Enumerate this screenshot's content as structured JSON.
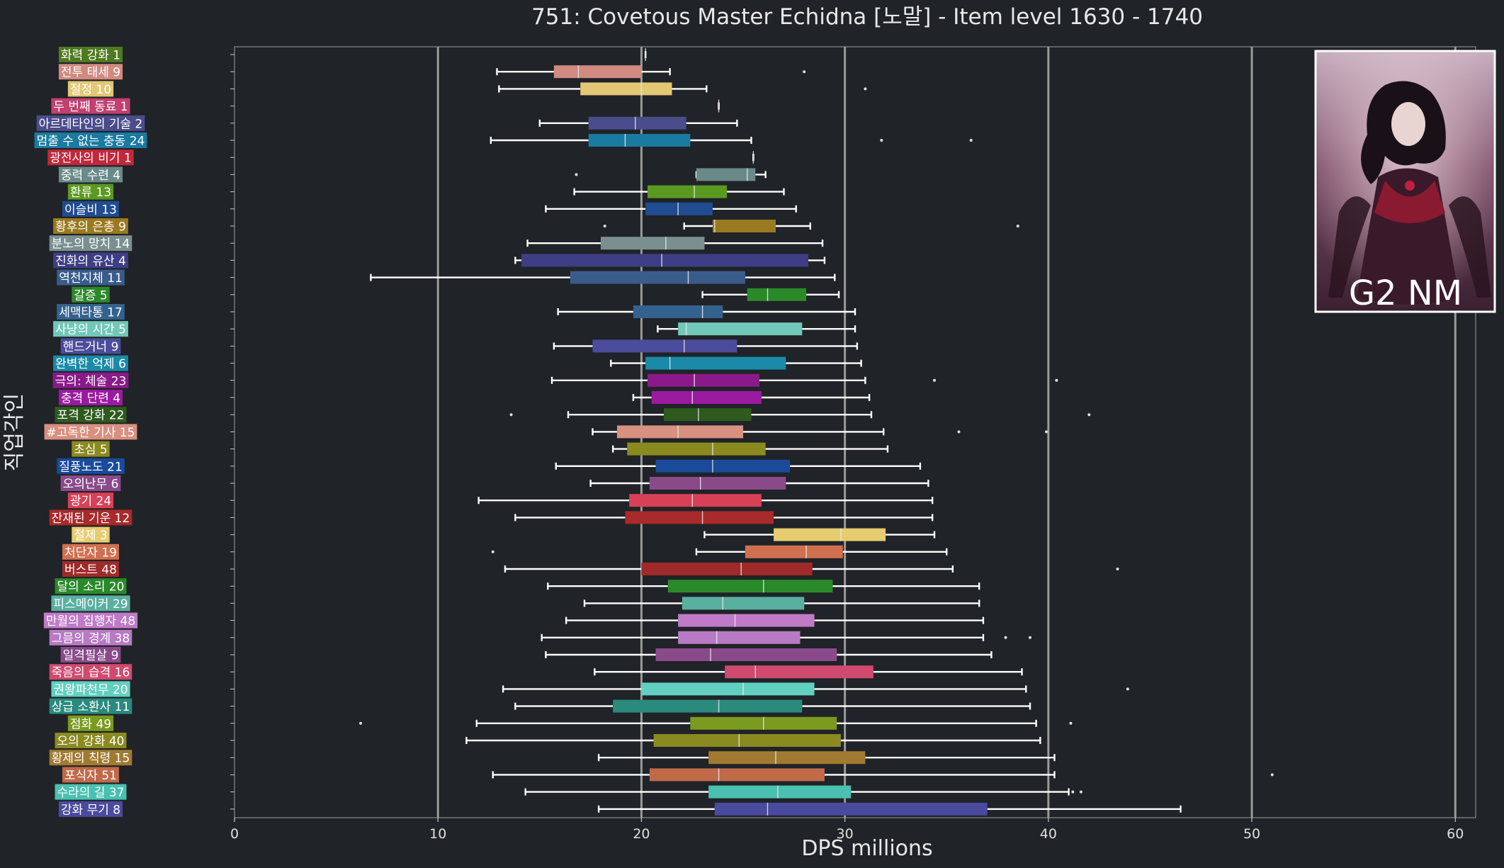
{
  "chart_data": {
    "type": "box",
    "title": "751: Covetous Master Echidna [노말] - Item level 1630 - 1740",
    "xlabel": "DPS millions",
    "ylabel": "직업각인",
    "xlim": [
      0,
      61
    ],
    "xticks": [
      0,
      10,
      20,
      30,
      40,
      50,
      60
    ],
    "grid": "vertical lines at 10,20,30,40,50,60",
    "inset_image_label": "G2 NM",
    "series": [
      {
        "label": "화력 강화 1",
        "color": "#4e7a20",
        "min": 20.2,
        "q1": 20.2,
        "median": 20.2,
        "q3": 20.2,
        "max": 20.2,
        "outliers": []
      },
      {
        "label": "전투 태세 9",
        "color": "#d08a80",
        "min": 12.9,
        "q1": 15.7,
        "median": 16.9,
        "q3": 20.0,
        "max": 21.4,
        "outliers": [
          28.0
        ]
      },
      {
        "label": "절정 10",
        "color": "#e2c874",
        "min": 13.0,
        "q1": 17.0,
        "median": 20.0,
        "q3": 21.5,
        "max": 23.2,
        "outliers": [
          31.0
        ]
      },
      {
        "label": "두 번째 동료 1",
        "color": "#c04070",
        "min": 23.8,
        "q1": 23.8,
        "median": 23.8,
        "q3": 23.8,
        "max": 23.8,
        "outliers": []
      },
      {
        "label": "아르데타인의 기술 2",
        "color": "#4a4c8c",
        "min": 15.0,
        "q1": 17.4,
        "median": 19.7,
        "q3": 22.2,
        "max": 24.7,
        "outliers": []
      },
      {
        "label": "멈출 수 없는 충동 24",
        "color": "#1a7aa0",
        "min": 12.6,
        "q1": 17.4,
        "median": 19.2,
        "q3": 22.4,
        "max": 25.4,
        "outliers": [
          31.8,
          36.2
        ]
      },
      {
        "label": "광전사의 비기 1",
        "color": "#c0283c",
        "min": 25.5,
        "q1": 25.5,
        "median": 25.5,
        "q3": 25.5,
        "max": 25.5,
        "outliers": []
      },
      {
        "label": "중력 수련 4",
        "color": "#6a8a8a",
        "min": 22.7,
        "q1": 22.7,
        "median": 25.2,
        "q3": 25.6,
        "max": 26.1,
        "outliers": [
          16.8
        ]
      },
      {
        "label": "환류 13",
        "color": "#5a9a20",
        "min": 16.7,
        "q1": 20.3,
        "median": 22.6,
        "q3": 24.2,
        "max": 27.0,
        "outliers": []
      },
      {
        "label": "이슬비 13",
        "color": "#204c90",
        "min": 15.3,
        "q1": 20.2,
        "median": 21.8,
        "q3": 23.5,
        "max": 27.6,
        "outliers": []
      },
      {
        "label": "황후의 은총 9",
        "color": "#9a7a20",
        "min": 22.1,
        "q1": 23.5,
        "median": 23.6,
        "q3": 26.6,
        "max": 28.3,
        "outliers": [
          18.2,
          38.5
        ]
      },
      {
        "label": "분노의 망치 14",
        "color": "#7a9090",
        "min": 14.4,
        "q1": 18.0,
        "median": 21.2,
        "q3": 23.1,
        "max": 28.9,
        "outliers": []
      },
      {
        "label": "진화의 유산 4",
        "color": "#3e3e86",
        "min": 13.8,
        "q1": 14.1,
        "median": 21.0,
        "q3": 28.2,
        "max": 29.0,
        "outliers": []
      },
      {
        "label": "역천지체 11",
        "color": "#3a5c8c",
        "min": 6.7,
        "q1": 16.5,
        "median": 22.3,
        "q3": 25.1,
        "max": 29.5,
        "outliers": []
      },
      {
        "label": "갈증 5",
        "color": "#2a8a2a",
        "min": 23.0,
        "q1": 25.2,
        "median": 26.2,
        "q3": 28.1,
        "max": 29.7,
        "outliers": []
      },
      {
        "label": "세맥타통 17",
        "color": "#34628e",
        "min": 15.9,
        "q1": 19.6,
        "median": 23.0,
        "q3": 24.0,
        "max": 30.5,
        "outliers": []
      },
      {
        "label": "사냥의 시간 5",
        "color": "#72c8b8",
        "min": 20.8,
        "q1": 21.8,
        "median": 22.2,
        "q3": 27.9,
        "max": 30.5,
        "outliers": []
      },
      {
        "label": "핸드거너 9",
        "color": "#4c4c9c",
        "min": 15.7,
        "q1": 17.6,
        "median": 22.1,
        "q3": 24.7,
        "max": 30.6,
        "outliers": []
      },
      {
        "label": "완벽한 억제 6",
        "color": "#1a8aa8",
        "min": 18.5,
        "q1": 20.2,
        "median": 21.4,
        "q3": 27.1,
        "max": 30.8,
        "outliers": []
      },
      {
        "label": "극의: 체술 23",
        "color": "#8a1a8a",
        "min": 15.6,
        "q1": 20.3,
        "median": 22.6,
        "q3": 25.8,
        "max": 31.0,
        "outliers": [
          34.4,
          40.4
        ]
      },
      {
        "label": "충격 단련 4",
        "color": "#9a1aa0",
        "min": 19.6,
        "q1": 20.5,
        "median": 22.5,
        "q3": 25.9,
        "max": 31.2,
        "outliers": []
      },
      {
        "label": "포격 강화 22",
        "color": "#2e5a1e",
        "min": 16.4,
        "q1": 21.1,
        "median": 22.8,
        "q3": 25.4,
        "max": 31.3,
        "outliers": [
          13.6,
          42.0
        ]
      },
      {
        "label": "#고독한 기사 15",
        "color": "#d89080",
        "min": 17.6,
        "q1": 18.8,
        "median": 21.8,
        "q3": 25.0,
        "max": 31.9,
        "outliers": [
          35.6,
          39.9
        ]
      },
      {
        "label": "초심 5",
        "color": "#8a8a20",
        "min": 18.6,
        "q1": 19.3,
        "median": 23.5,
        "q3": 26.1,
        "max": 32.1,
        "outliers": []
      },
      {
        "label": "질풍노도 21",
        "color": "#1a4a9a",
        "min": 15.8,
        "q1": 20.7,
        "median": 23.5,
        "q3": 27.3,
        "max": 33.7,
        "outliers": []
      },
      {
        "label": "오의난무 6",
        "color": "#8a4a8a",
        "min": 17.5,
        "q1": 20.4,
        "median": 22.9,
        "q3": 27.1,
        "max": 34.1,
        "outliers": []
      },
      {
        "label": "광기 24",
        "color": "#d84058",
        "min": 12.0,
        "q1": 19.4,
        "median": 22.5,
        "q3": 25.9,
        "max": 34.3,
        "outliers": []
      },
      {
        "label": "잔재된 기운 12",
        "color": "#a82a2a",
        "min": 13.8,
        "q1": 19.2,
        "median": 23.0,
        "q3": 26.5,
        "max": 34.3,
        "outliers": []
      },
      {
        "label": "절제 3",
        "color": "#e8cc70",
        "min": 23.1,
        "q1": 26.5,
        "median": 29.8,
        "q3": 32.0,
        "max": 34.4,
        "outliers": []
      },
      {
        "label": "처단자 19",
        "color": "#d07050",
        "min": 22.7,
        "q1": 25.1,
        "median": 28.1,
        "q3": 29.9,
        "max": 35.0,
        "outliers": [
          12.7
        ]
      },
      {
        "label": "버스트 48",
        "color": "#a02a2a",
        "min": 13.3,
        "q1": 20.0,
        "median": 24.9,
        "q3": 28.4,
        "max": 35.3,
        "outliers": [
          43.4
        ]
      },
      {
        "label": "달의 소리 20",
        "color": "#2a8a2a",
        "min": 15.4,
        "q1": 21.3,
        "median": 26.0,
        "q3": 29.4,
        "max": 36.6,
        "outliers": []
      },
      {
        "label": "피스메이커 29",
        "color": "#5ab0a0",
        "min": 17.2,
        "q1": 22.0,
        "median": 24.0,
        "q3": 28.0,
        "max": 36.6,
        "outliers": []
      },
      {
        "label": "만월의 집행자 48",
        "color": "#c07ac8",
        "min": 16.3,
        "q1": 21.8,
        "median": 24.6,
        "q3": 28.5,
        "max": 36.8,
        "outliers": []
      },
      {
        "label": "그믐의 경계 38",
        "color": "#b87ac4",
        "min": 15.1,
        "q1": 21.8,
        "median": 23.7,
        "q3": 27.8,
        "max": 36.8,
        "outliers": [
          37.9,
          39.1
        ]
      },
      {
        "label": "일격필살 9",
        "color": "#8a4a8a",
        "min": 15.3,
        "q1": 20.7,
        "median": 23.4,
        "q3": 29.6,
        "max": 37.2,
        "outliers": []
      },
      {
        "label": "죽음의 습격 16",
        "color": "#d04a70",
        "min": 17.7,
        "q1": 24.1,
        "median": 25.6,
        "q3": 31.4,
        "max": 38.7,
        "outliers": []
      },
      {
        "label": "권왕파천무 20",
        "color": "#62d0c0",
        "min": 13.2,
        "q1": 20.0,
        "median": 25.0,
        "q3": 28.5,
        "max": 38.9,
        "outliers": [
          43.9
        ]
      },
      {
        "label": "상급 소환사 11",
        "color": "#2a8a7e",
        "min": 13.8,
        "q1": 18.6,
        "median": 23.8,
        "q3": 27.9,
        "max": 39.1,
        "outliers": []
      },
      {
        "label": "점화 49",
        "color": "#7a9a20",
        "min": 11.9,
        "q1": 22.4,
        "median": 26.0,
        "q3": 29.6,
        "max": 39.4,
        "outliers": [
          6.2,
          41.1
        ]
      },
      {
        "label": "오의 강화 40",
        "color": "#8a8a20",
        "min": 11.4,
        "q1": 20.6,
        "median": 24.8,
        "q3": 29.8,
        "max": 39.6,
        "outliers": []
      },
      {
        "label": "황제의 칙령 15",
        "color": "#a07a30",
        "min": 17.9,
        "q1": 23.3,
        "median": 26.6,
        "q3": 31.0,
        "max": 40.3,
        "outliers": []
      },
      {
        "label": "포식자 51",
        "color": "#c06a4a",
        "min": 12.7,
        "q1": 20.4,
        "median": 23.8,
        "q3": 29.0,
        "max": 40.3,
        "outliers": [
          51.0
        ]
      },
      {
        "label": "수라의 길 37",
        "color": "#4ac0b0",
        "min": 14.3,
        "q1": 23.3,
        "median": 26.7,
        "q3": 30.3,
        "max": 41.0,
        "outliers": [
          41.2,
          41.6
        ]
      },
      {
        "label": "강화 무기 8",
        "color": "#4a4a9e",
        "min": 17.9,
        "q1": 23.6,
        "median": 26.2,
        "q3": 37.0,
        "max": 46.5,
        "outliers": []
      }
    ]
  }
}
